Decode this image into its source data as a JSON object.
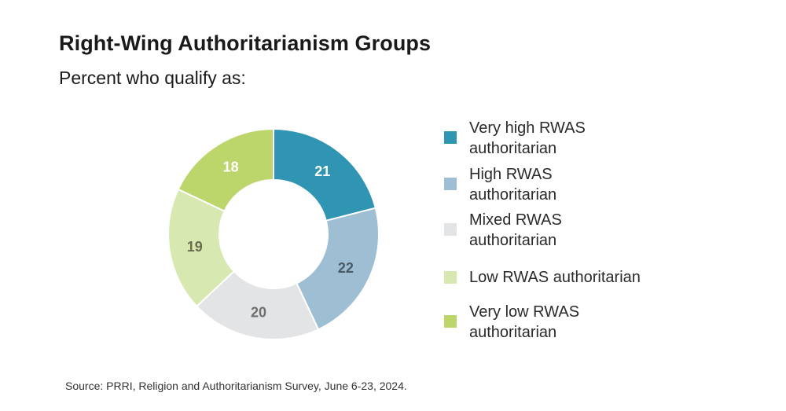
{
  "header": {
    "title": "Right-Wing Authoritarianism Groups",
    "subtitle": "Percent who qualify as:"
  },
  "chart_data": {
    "type": "pie",
    "variant": "donut",
    "title": "Right-Wing Authoritarianism Groups",
    "subtitle": "Percent who qualify as:",
    "legend_position": "right",
    "categories": [
      "Very high RWAS authoritarian",
      "High RWAS authoritarian",
      "Mixed RWAS authoritarian",
      "Low RWAS authoritarian",
      "Very low RWAS authoritarian"
    ],
    "values": [
      21,
      22,
      20,
      19,
      18
    ],
    "colors": [
      "#2f95b2",
      "#9dbed3",
      "#e3e4e6",
      "#d7e8b1",
      "#bdd66b"
    ],
    "label_colors": [
      "#ffffff",
      "#4a5a66",
      "#6e6e6e",
      "#6b6b4e",
      "#ffffff"
    ],
    "legend_labels": [
      [
        "Very high RWAS",
        "authoritarian"
      ],
      [
        "High RWAS",
        "authoritarian"
      ],
      [
        "Mixed RWAS",
        "authoritarian"
      ],
      [
        "Low RWAS authoritarian"
      ],
      [
        "Very low RWAS",
        "authoritarian"
      ]
    ]
  },
  "footer": {
    "source": "Source: PRRI, Religion and Authoritarianism Survey, June 6-23, 2024."
  }
}
